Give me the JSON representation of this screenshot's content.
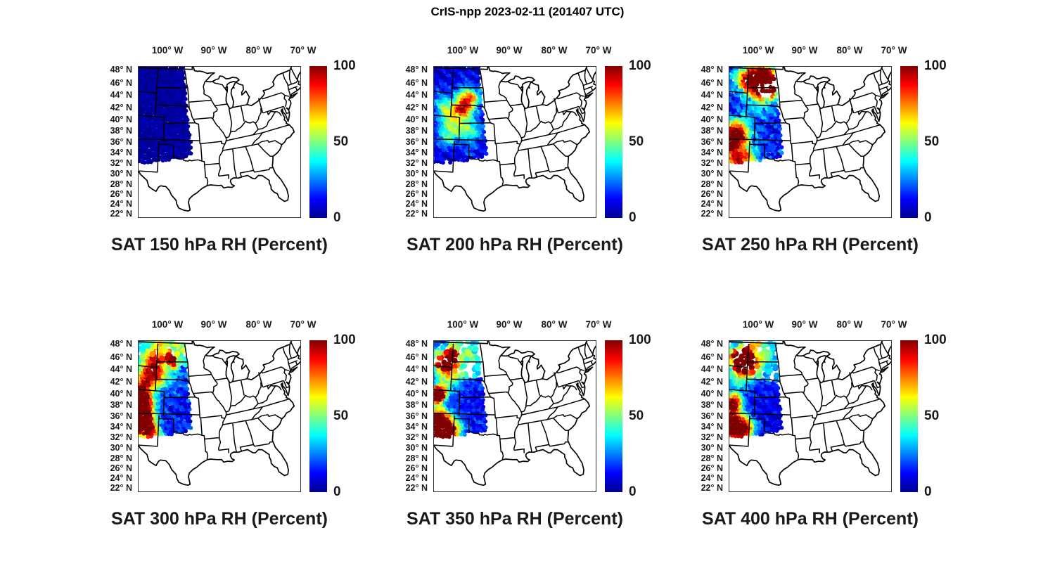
{
  "figure_title": "CrIS-npp 2023-02-11 (201407 UTC)",
  "axes": {
    "lon_ticks": [
      "100° W",
      "90° W",
      "80° W",
      "70° W"
    ],
    "lat_ticks": [
      "48° N",
      "46° N",
      "44° N",
      "42° N",
      "40° N",
      "38° N",
      "36° N",
      "34° N",
      "32° N",
      "30° N",
      "28° N",
      "26° N",
      "24° N",
      "22° N"
    ]
  },
  "colorbar": {
    "ticks": [
      "0",
      "50",
      "100"
    ],
    "min": 0,
    "max": 100
  },
  "chart_data": {
    "type": "scatter",
    "colormap": "jet",
    "value_range": [
      0,
      100
    ],
    "value_units": "RH (Percent)",
    "region": "Continental United States",
    "swath": {
      "lat_top": 49.55,
      "bottom_edge": [
        [
          -106.6,
          33.1
        ],
        [
          -96.8,
          34.5
        ]
      ],
      "right_edge_lon_at_40N": -96.7,
      "right_edge_slope_lon_per_lat": -0.08
    },
    "panels": [
      {
        "pressure_hPa": 150,
        "title": "SAT 150 hPa RH (Percent)",
        "base": 3,
        "noise": 2,
        "streak": 1,
        "scatter_boundary": null,
        "gaps": 0,
        "features": [],
        "holes": []
      },
      {
        "pressure_hPa": 200,
        "title": "SAT 200 hPa RH (Percent)",
        "base": 9,
        "noise": 5,
        "streak": 5,
        "scatter_boundary": null,
        "gaps": 0,
        "features": [
          [
            -100.8,
            44.6,
            1.3,
            40
          ],
          [
            -99.2,
            44.2,
            1.0,
            38
          ],
          [
            -101.8,
            42.6,
            0.9,
            45
          ],
          [
            -100.5,
            42.0,
            1.2,
            32
          ],
          [
            -104.3,
            41.6,
            1.0,
            28
          ],
          [
            -103.6,
            39.6,
            1.3,
            26
          ],
          [
            -101.0,
            39.0,
            1.1,
            24
          ],
          [
            -105.6,
            42.7,
            0.9,
            22
          ],
          [
            -98.7,
            38.6,
            1.0,
            20
          ],
          [
            -104.2,
            36.9,
            0.9,
            16
          ],
          [
            -99.8,
            36.0,
            0.8,
            14
          ],
          [
            -102.5,
            40.8,
            2.5,
            10
          ],
          [
            -106.5,
            44.0,
            1.5,
            12
          ],
          [
            -105.0,
            38.0,
            1.2,
            14
          ]
        ],
        "holes": []
      },
      {
        "pressure_hPa": 250,
        "title": "SAT 250 hPa RH (Percent)",
        "base": 13,
        "noise": 8,
        "streak": 5,
        "scatter_boundary": null,
        "gaps": 0.05,
        "features": [
          [
            -102.0,
            47.6,
            1.8,
            62
          ],
          [
            -99.4,
            47.9,
            1.5,
            58
          ],
          [
            -98.6,
            46.0,
            1.2,
            64
          ],
          [
            -100.6,
            45.4,
            1.0,
            48
          ],
          [
            -103.9,
            47.1,
            1.3,
            34
          ],
          [
            -106.3,
            47.6,
            1.3,
            20
          ],
          [
            -100.3,
            46.6,
            2.6,
            20
          ],
          [
            -105.6,
            39.2,
            1.3,
            46
          ],
          [
            -106.6,
            37.9,
            1.1,
            56
          ],
          [
            -104.9,
            37.6,
            0.9,
            42
          ],
          [
            -106.9,
            36.1,
            0.9,
            60
          ],
          [
            -104.6,
            34.6,
            1.2,
            46
          ],
          [
            -105.9,
            33.6,
            0.9,
            42
          ],
          [
            -102.9,
            34.3,
            0.9,
            28
          ],
          [
            -104.7,
            36.6,
            2.2,
            16
          ],
          [
            -103.0,
            42.6,
            1.3,
            12
          ],
          [
            -99.2,
            42.2,
            1.3,
            9
          ]
        ],
        "holes": [
          [
            -99.4,
            46.4,
            0.55
          ],
          [
            -100.3,
            44.7,
            0.6
          ],
          [
            -97.9,
            46.7,
            0.45
          ],
          [
            -101.3,
            46.1,
            0.4
          ],
          [
            -98.9,
            44.9,
            0.5
          ]
        ]
      },
      {
        "pressure_hPa": 300,
        "title": "SAT 300 hPa RH (Percent)",
        "base": 14,
        "noise": 7,
        "streak": 3,
        "scatter_boundary": [
          46.5,
          45.2
        ],
        "scatter_count": 85,
        "gaps": 0.03,
        "features": [
          [
            -106.9,
            40.1,
            1.0,
            62
          ],
          [
            -106.1,
            38.9,
            1.2,
            68
          ],
          [
            -106.6,
            37.1,
            1.1,
            72
          ],
          [
            -105.6,
            36.1,
            1.2,
            58
          ],
          [
            -106.9,
            35.1,
            1.0,
            62
          ],
          [
            -105.1,
            34.4,
            1.1,
            48
          ],
          [
            -103.9,
            33.9,
            0.8,
            36
          ],
          [
            -105.5,
            44.6,
            1.7,
            30
          ],
          [
            -103.6,
            43.6,
            1.5,
            26
          ],
          [
            -106.1,
            42.6,
            1.3,
            30
          ],
          [
            -104.6,
            45.9,
            1.1,
            26
          ],
          [
            -104.5,
            44.8,
            2.5,
            18
          ],
          [
            -101.1,
            46.9,
            0.6,
            48
          ],
          [
            -99.8,
            45.4,
            0.5,
            52
          ],
          [
            -100.3,
            46.5,
            0.4,
            44
          ],
          [
            -99.1,
            48.1,
            1.3,
            12
          ],
          [
            -104.1,
            48.7,
            0.9,
            20
          ],
          [
            -107.0,
            41.6,
            0.8,
            32
          ],
          [
            -102.0,
            48.0,
            3.5,
            14
          ]
        ],
        "holes": []
      },
      {
        "pressure_hPa": 350,
        "title": "SAT 350 hPa RH (Percent)",
        "base": 13,
        "noise": 7,
        "streak": 3,
        "scatter_boundary": [
          44.8,
          43.0
        ],
        "scatter_count": 110,
        "gaps": 0.03,
        "features": [
          [
            -106.4,
            46.1,
            1.2,
            38
          ],
          [
            -104.5,
            47.2,
            0.8,
            45
          ],
          [
            -103.7,
            46.4,
            0.7,
            46
          ],
          [
            -105.9,
            44.9,
            1.1,
            30
          ],
          [
            -106.1,
            40.8,
            0.8,
            66
          ],
          [
            -107.3,
            40.3,
            0.9,
            70
          ],
          [
            -106.6,
            39.9,
            0.7,
            58
          ],
          [
            -106.6,
            36.4,
            1.3,
            70
          ],
          [
            -105.3,
            35.4,
            1.4,
            64
          ],
          [
            -106.9,
            34.4,
            1.1,
            70
          ],
          [
            -104.4,
            34.1,
            1.1,
            52
          ],
          [
            -105.9,
            33.4,
            0.9,
            58
          ],
          [
            -105.1,
            43.1,
            1.5,
            24
          ],
          [
            -103.1,
            43.9,
            1.3,
            20
          ],
          [
            -99.6,
            46.9,
            1.1,
            14
          ],
          [
            -104.6,
            48.4,
            0.8,
            18
          ],
          [
            -102.6,
            34.9,
            0.9,
            30
          ],
          [
            -103.0,
            47.5,
            3.0,
            16
          ],
          [
            -107.2,
            49.0,
            1.0,
            -20
          ]
        ],
        "holes": []
      },
      {
        "pressure_hPa": 400,
        "title": "SAT 400 hPa RH (Percent)",
        "base": 11,
        "noise": 6,
        "streak": 3,
        "scatter_boundary": [
          44.5,
          42.5
        ],
        "scatter_count": 125,
        "gaps": 0.03,
        "features": [
          [
            -106.1,
            46.2,
            1.1,
            56
          ],
          [
            -104.6,
            45.95,
            1.3,
            60
          ],
          [
            -103.1,
            45.85,
            0.9,
            48
          ],
          [
            -106.9,
            46.9,
            0.7,
            44
          ],
          [
            -105.8,
            47.3,
            0.7,
            45
          ],
          [
            -104.1,
            48.7,
            0.6,
            40
          ],
          [
            -101.6,
            48.9,
            0.5,
            32
          ],
          [
            -104.1,
            44.1,
            1.7,
            20
          ],
          [
            -106.1,
            43.1,
            1.2,
            24
          ],
          [
            -106.4,
            39.6,
            0.9,
            60
          ],
          [
            -106.7,
            38.4,
            0.9,
            64
          ],
          [
            -106.3,
            36.3,
            1.2,
            64
          ],
          [
            -104.9,
            35.1,
            1.3,
            56
          ],
          [
            -106.6,
            34.1,
            1.0,
            60
          ],
          [
            -104.0,
            34.0,
            0.9,
            44
          ],
          [
            -103.1,
            35.6,
            0.9,
            24
          ],
          [
            -99.9,
            47.3,
            1.0,
            12
          ],
          [
            -103.5,
            47.5,
            3.0,
            18
          ],
          [
            -107.3,
            49.3,
            0.8,
            -15
          ]
        ],
        "holes": []
      }
    ]
  }
}
